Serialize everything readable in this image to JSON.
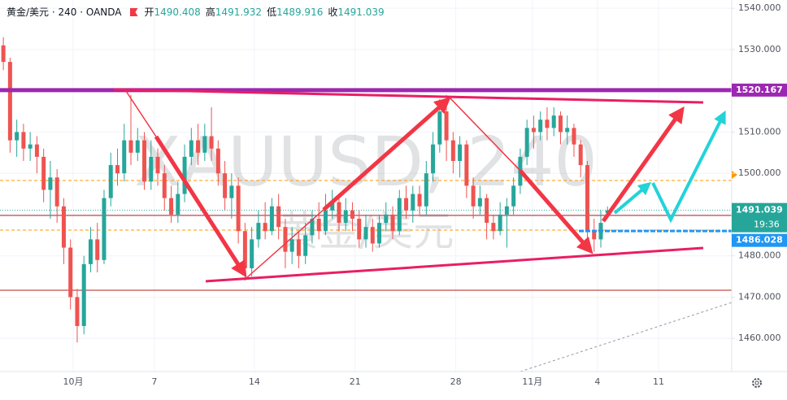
{
  "header": {
    "symbol": "黄金/美元 · 240 · OANDA",
    "open_label": "开",
    "high_label": "高",
    "low_label": "低",
    "close_label": "收"
  },
  "watermark": {
    "line1": "XAUUSD, 240",
    "line2": "黄金/美元"
  },
  "countdown": "19:36",
  "chart_data": {
    "type": "candlestick",
    "open": [
      1531,
      1527,
      1508,
      1510,
      1506,
      1507,
      1504,
      1496,
      1499,
      1492,
      1482,
      1470,
      1463,
      1478,
      1484,
      1479,
      1494,
      1502,
      1500,
      1508,
      1505,
      1508,
      1498,
      1504,
      1500,
      1494,
      1490,
      1495,
      1504,
      1508,
      1505,
      1509,
      1506,
      1500,
      1494,
      1497,
      1486,
      1477,
      1484,
      1488,
      1486,
      1492,
      1487,
      1481,
      1484,
      1480,
      1485,
      1489,
      1486,
      1491,
      1493,
      1488,
      1491,
      1489,
      1484,
      1487,
      1483,
      1488,
      1490,
      1486,
      1494,
      1491,
      1495,
      1492,
      1500,
      1507,
      1515,
      1508,
      1503,
      1507,
      1497,
      1492,
      1494,
      1488,
      1486,
      1490,
      1492,
      1497,
      1504,
      1511,
      1510,
      1513,
      1511,
      1514,
      1510,
      1511,
      1507,
      1502,
      1486,
      1484,
      1490.408
    ],
    "high": [
      1533,
      1528,
      1513,
      1512,
      1510,
      1509,
      1506,
      1503,
      1501,
      1494,
      1484,
      1472,
      1480,
      1487,
      1488,
      1496,
      1505,
      1506,
      1512,
      1519,
      1511,
      1510,
      1508,
      1506,
      1502,
      1497,
      1498,
      1507,
      1511,
      1512,
      1512,
      1516,
      1508,
      1503,
      1500,
      1499,
      1488,
      1487,
      1491,
      1493,
      1494,
      1495,
      1489,
      1487,
      1486,
      1488,
      1491,
      1493,
      1495,
      1496,
      1495,
      1494,
      1493,
      1491,
      1490,
      1489,
      1490,
      1493,
      1492,
      1496,
      1497,
      1497,
      1497,
      1503,
      1510,
      1518,
      1519,
      1510,
      1509,
      1508,
      1499,
      1497,
      1495,
      1490,
      1493,
      1494,
      1499,
      1506,
      1513,
      1514,
      1515,
      1516,
      1516,
      1515,
      1514,
      1512,
      1508,
      1503,
      1489,
      1491,
      1491.932
    ],
    "low": [
      1525,
      1505,
      1504,
      1503,
      1503,
      1500,
      1493,
      1489,
      1488,
      1478,
      1467,
      1459,
      1461,
      1476,
      1476,
      1478,
      1492,
      1497,
      1498,
      1502,
      1503,
      1496,
      1496,
      1497,
      1491,
      1488,
      1488,
      1493,
      1502,
      1502,
      1503,
      1503,
      1497,
      1491,
      1489,
      1483,
      1474,
      1475,
      1482,
      1484,
      1485,
      1484,
      1477,
      1478,
      1477,
      1478,
      1483,
      1484,
      1485,
      1489,
      1486,
      1486,
      1486,
      1482,
      1482,
      1481,
      1482,
      1486,
      1484,
      1485,
      1489,
      1488,
      1490,
      1490,
      1498,
      1505,
      1503,
      1500,
      1499,
      1494,
      1489,
      1490,
      1484,
      1484,
      1485,
      1482,
      1490,
      1495,
      1502,
      1506,
      1508,
      1508,
      1509,
      1507,
      1507,
      1504,
      1499,
      1482,
      1481,
      1482,
      1489.916
    ],
    "close": [
      1527,
      1508,
      1510,
      1506,
      1507,
      1504,
      1496,
      1499,
      1492,
      1482,
      1470,
      1463,
      1478,
      1484,
      1479,
      1494,
      1502,
      1500,
      1508,
      1505,
      1508,
      1498,
      1504,
      1500,
      1494,
      1490,
      1495,
      1504,
      1508,
      1505,
      1509,
      1506,
      1500,
      1494,
      1497,
      1486,
      1477,
      1484,
      1488,
      1486,
      1492,
      1487,
      1481,
      1484,
      1480,
      1485,
      1489,
      1486,
      1491,
      1493,
      1488,
      1491,
      1489,
      1484,
      1487,
      1483,
      1488,
      1490,
      1486,
      1494,
      1491,
      1495,
      1492,
      1500,
      1507,
      1515,
      1508,
      1503,
      1507,
      1497,
      1492,
      1494,
      1488,
      1486,
      1490,
      1492,
      1497,
      1504,
      1511,
      1510,
      1513,
      1511,
      1514,
      1510,
      1511,
      1507,
      1502,
      1486,
      1484,
      1488,
      1491.039
    ],
    "up_color": "#26a69a",
    "down_color": "#ef5350",
    "xlim": [
      -0.5,
      108.5
    ],
    "xticks": [
      {
        "value": 10.4,
        "label": "10月"
      },
      {
        "value": 22.5,
        "label": "7"
      },
      {
        "value": 37.4,
        "label": "14"
      },
      {
        "value": 52.4,
        "label": "21"
      },
      {
        "value": 67.4,
        "label": "28"
      },
      {
        "value": 78.8,
        "label": "11月"
      },
      {
        "value": 88.5,
        "label": "4"
      },
      {
        "value": 97.6,
        "label": "11"
      }
    ],
    "ylim": [
      1450,
      1542
    ],
    "yticks": [
      {
        "value": 1460,
        "label": "1460.000"
      },
      {
        "value": 1470,
        "label": "1470.000"
      },
      {
        "value": 1480,
        "label": "1480.000"
      },
      {
        "value": 1490,
        "label": "1490.000"
      },
      {
        "value": 1500,
        "label": "1500.000"
      },
      {
        "value": 1510,
        "label": "1510.000"
      },
      {
        "value": 1520,
        "label": "1520.000"
      },
      {
        "value": 1530,
        "label": "1530.000"
      },
      {
        "value": 1540,
        "label": "1540.000"
      }
    ],
    "grid": true,
    "levels": [
      {
        "value": 1520.167,
        "color": "#9c27b0"
      },
      {
        "value": 1486.028,
        "color": "#2196f3"
      }
    ]
  }
}
